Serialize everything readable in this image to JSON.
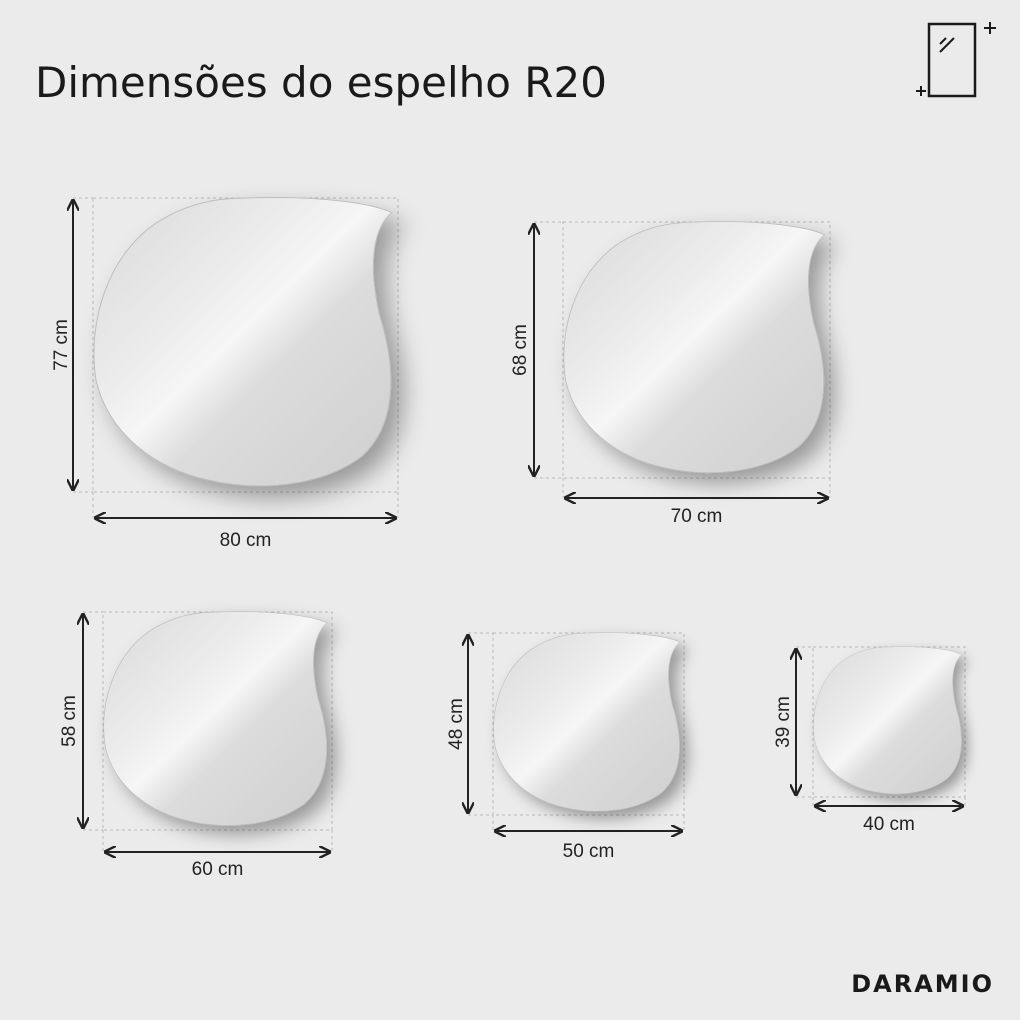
{
  "title": "Dimensões do espelho R20",
  "mirrors": [
    {
      "height": "77 cm",
      "width": "80 cm"
    },
    {
      "height": "68 cm",
      "width": "70 cm"
    },
    {
      "height": "58 cm",
      "width": "60 cm"
    },
    {
      "height": "48 cm",
      "width": "50 cm"
    },
    {
      "height": "39 cm",
      "width": "40 cm"
    }
  ],
  "brand": "DARAMIO"
}
